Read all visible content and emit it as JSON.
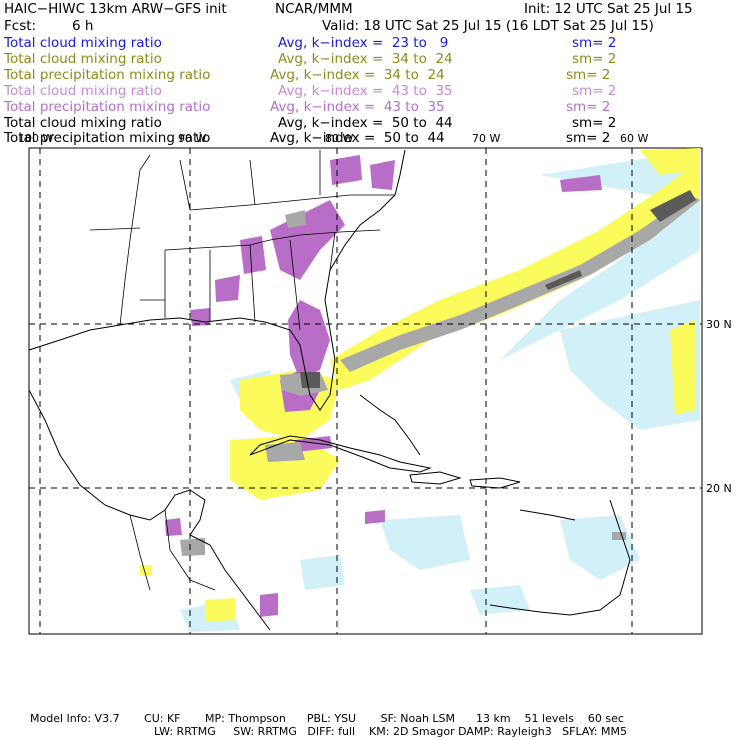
{
  "header": {
    "model": "HAIC−HIWC 13km ARW−GFS init",
    "center": "NCAR/MMM",
    "init": "Init: 12 UTC Sat 25 Jul 15",
    "fcst_label": "Fcst:",
    "fcst_value": "6 h",
    "valid": "Valid: 18 UTC Sat 25 Jul 15 (16 LDT Sat 25 Jul 15)"
  },
  "fields": [
    {
      "name": "Total cloud mixing ratio",
      "avg": "Avg, k−index =  23 to   9",
      "sm": "sm= 2",
      "color": "#1a1ad0"
    },
    {
      "name": "Total cloud mixing ratio",
      "avg": "Avg, k−index =  34 to  24",
      "sm": "sm= 2",
      "color": "#8c8c1a"
    },
    {
      "name": "Total precipitation mixing ratio",
      "avg": "Avg, k−index =  34 to  24",
      "sm": "sm= 2",
      "color": "#8c8c1a"
    },
    {
      "name": "Total cloud mixing ratio",
      "avg": "Avg, k−index =  43 to  35",
      "sm": "sm= 2",
      "color": "#c78ad3"
    },
    {
      "name": "Total precipitation mixing ratio",
      "avg": "Avg, k−index =  43 to  35",
      "sm": "sm= 2",
      "color": "#b46fc8"
    },
    {
      "name": "Total cloud mixing ratio",
      "avg": "Avg, k−index =  50 to  44",
      "sm": "sm= 2",
      "color": "#000000"
    },
    {
      "name": "Total precipitation mixing ratio",
      "avg": "Avg, k−index =  50 to  44",
      "sm": "sm= 2",
      "color": "#000000"
    }
  ],
  "map": {
    "lon_labels": [
      "100 W",
      "90 W",
      "80 W",
      "70 W",
      "60 W"
    ],
    "lat_labels": [
      "30 N",
      "20 N"
    ],
    "colors": {
      "grid": "#000000",
      "coast": "#000000",
      "purple": "#b86ec6",
      "yellow": "#fbfb5c",
      "lightblue": "#d2f0f8",
      "gray": "#a8a8a8",
      "darkgray": "#5a5a5a"
    }
  },
  "footer": {
    "line1": "Model Info: V3.7       CU: KF       MP: Thompson      PBL: YSU       SF: Noah LSM      13 km    51 levels    60 sec",
    "line2": "LW: RRTMG     SW: RRTMG   DIFF: full    KM: 2D Smagor DAMP: Rayleigh3   SFLAY: MM5"
  }
}
